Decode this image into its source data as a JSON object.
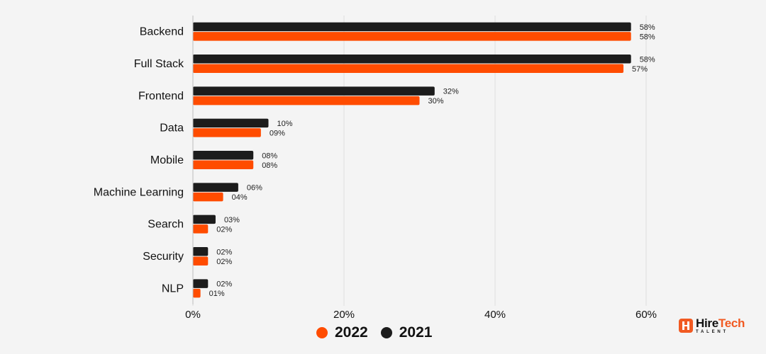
{
  "chart_data": {
    "type": "bar",
    "orientation": "horizontal",
    "categories": [
      "Backend",
      "Full Stack",
      "Frontend",
      "Data",
      "Mobile",
      "Machine Learning",
      "Search",
      "Security",
      "NLP"
    ],
    "series": [
      {
        "name": "2021",
        "color": "#1c1c1c",
        "values": [
          58,
          58,
          32,
          10,
          8,
          6,
          3,
          2,
          2
        ],
        "labels": [
          "58%",
          "58%",
          "32%",
          "10%",
          "08%",
          "06%",
          "03%",
          "02%",
          "02%"
        ]
      },
      {
        "name": "2022",
        "color": "#ff4c00",
        "values": [
          58,
          57,
          30,
          9,
          8,
          4,
          2,
          2,
          1
        ],
        "labels": [
          "58%",
          "57%",
          "30%",
          "09%",
          "08%",
          "04%",
          "02%",
          "02%",
          "01%"
        ]
      }
    ],
    "xlim": [
      0,
      60
    ],
    "x_ticks": [
      "0%",
      "20%",
      "40%",
      "60%"
    ],
    "grid": true,
    "legend_position": "bottom-center"
  },
  "legend": [
    {
      "label": "2022",
      "color": "#ff4c00"
    },
    {
      "label": "2021",
      "color": "#1c1c1c"
    }
  ],
  "brand": {
    "name_part1": "Hire",
    "name_part2": "Tech",
    "sub": "TALENT",
    "icon": "brand-logo-icon",
    "accent": "#f15a22"
  }
}
